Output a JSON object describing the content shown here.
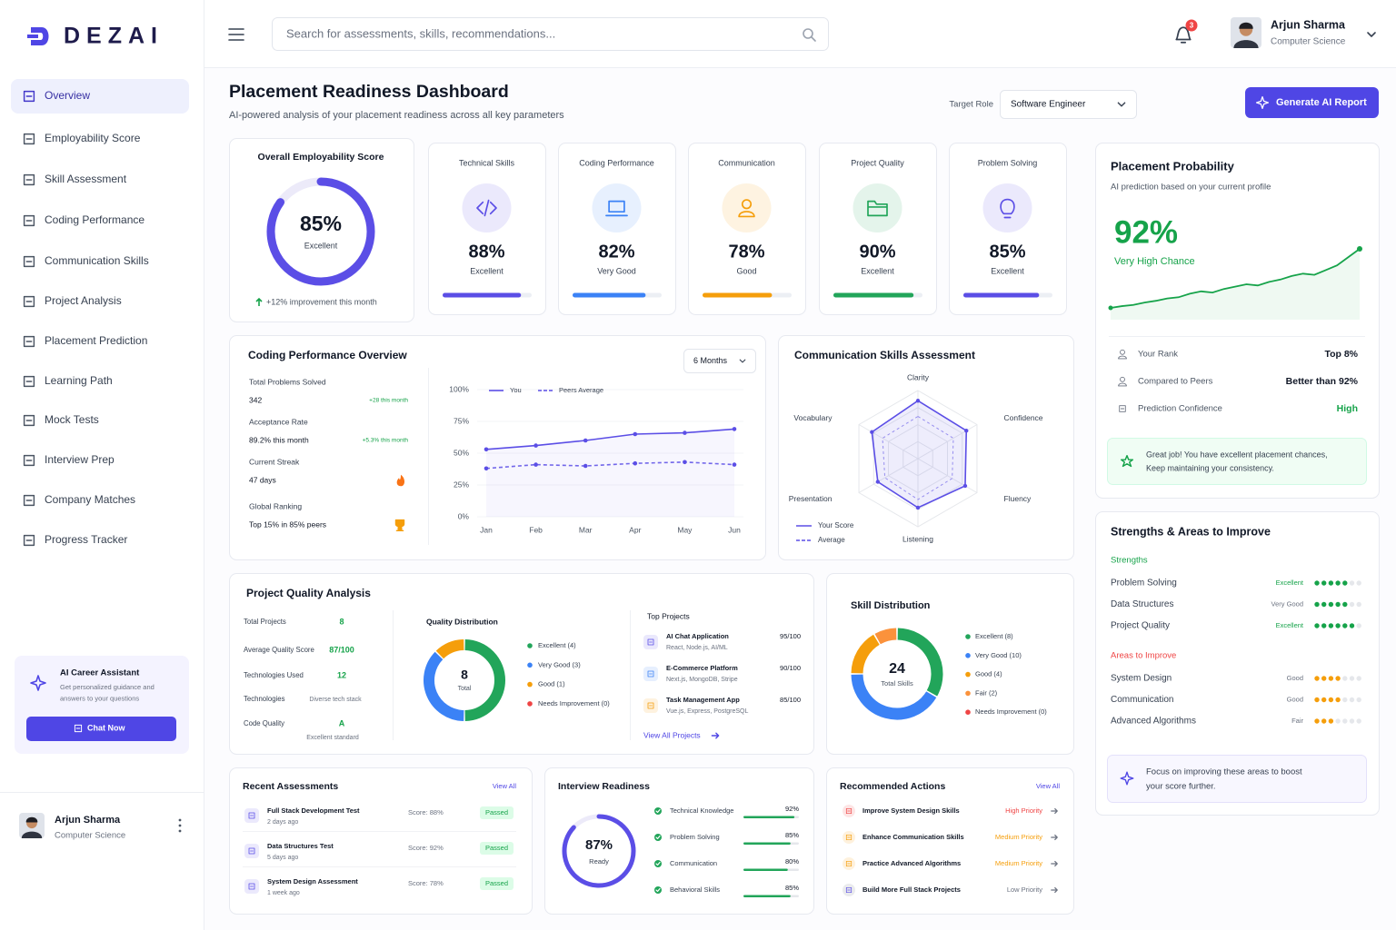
{
  "brand": "DEZAI",
  "nav": [
    {
      "label": "Overview",
      "active": true
    },
    {
      "label": "Employability Score"
    },
    {
      "label": "Skill Assessment"
    },
    {
      "label": "Coding Performance"
    },
    {
      "label": "Communication Skills"
    },
    {
      "label": "Project Analysis"
    },
    {
      "label": "Placement Prediction"
    },
    {
      "label": "Learning Path"
    },
    {
      "label": "Mock Tests"
    },
    {
      "label": "Interview Prep"
    },
    {
      "label": "Company Matches"
    },
    {
      "label": "Progress Tracker"
    }
  ],
  "assistant": {
    "title": "AI Career Assistant",
    "text": [
      "Get personalized guidance and",
      "answers to your questions"
    ],
    "button": "Chat Now"
  },
  "user": {
    "name": "Arjun Sharma",
    "dept": "Computer Science"
  },
  "search_placeholder": "Search for assessments, skills, recommendations...",
  "notifications": "3",
  "header": {
    "title": "Placement Readiness Dashboard",
    "subtitle": "AI-powered analysis of your placement readiness across all key parameters",
    "target_label": "Target Role",
    "target_value": "Software Engineer",
    "button": "Generate AI Report"
  },
  "overall": {
    "title": "Overall Employability Score",
    "score": {
      "value": 85,
      "label": "85%"
    },
    "rating": "Excellent",
    "note": "+12% improvement this month"
  },
  "skills": [
    {
      "name": "Technical Skills",
      "score": {
        "value": 88,
        "label": "88%"
      },
      "rating": "Excellent",
      "color": "#5b4ee6",
      "icon": "code"
    },
    {
      "name": "Coding Performance",
      "score": {
        "value": 82,
        "label": "82%"
      },
      "rating": "Very Good",
      "color": "#3b82f6",
      "icon": "laptop"
    },
    {
      "name": "Communication",
      "score": {
        "value": 78,
        "label": "78%"
      },
      "rating": "Good",
      "color": "#f59e0b",
      "icon": "person"
    },
    {
      "name": "Project Quality",
      "score": {
        "value": 90,
        "label": "90%"
      },
      "rating": "Excellent",
      "color": "#22a55a",
      "icon": "folder"
    },
    {
      "name": "Problem Solving",
      "score": {
        "value": 85,
        "label": "85%"
      },
      "rating": "Excellent",
      "color": "#5b4ee6",
      "icon": "bulb"
    }
  ],
  "probability": {
    "title": "Placement Probability",
    "subtitle": "AI prediction based on your current profile",
    "score": "92%",
    "rating": "Very High Chance",
    "color": "#16a34a",
    "trend": [
      0,
      3,
      5,
      9,
      12,
      16,
      18,
      24,
      28,
      26,
      32,
      36,
      40,
      38,
      44,
      48,
      54,
      58,
      56,
      64,
      72,
      86,
      100
    ],
    "stats": [
      {
        "label": "Your Rank",
        "value": "Top 8%"
      },
      {
        "label": "Compared to Peers",
        "value": "Better than 92%"
      },
      {
        "label": "Prediction Confidence",
        "value": "High",
        "color": "#16a34a"
      }
    ],
    "message": [
      "Great job! You have excellent placement chances,",
      "Keep maintaining your consistency."
    ]
  },
  "coding": {
    "title": "Coding Performance Overview",
    "period": "6 Months",
    "stats": [
      {
        "label": "Total Problems Solved",
        "value": "342",
        "change": "+28 this month"
      },
      {
        "label": "Acceptance Rate",
        "value": "89.2% this month",
        "change": "+5.3% this month"
      },
      {
        "label": "Current Streak",
        "value": "47 days"
      },
      {
        "label": "Global Ranking",
        "value": "Top 15% in 85% peers"
      }
    ],
    "chart": {
      "type": "line",
      "categories": [
        "Jan",
        "Feb",
        "Mar",
        "Apr",
        "May",
        "Jun"
      ],
      "ylim": [
        0,
        100
      ],
      "yticks": [
        {
          "value": 0,
          "label": "0%"
        },
        {
          "value": 25,
          "label": "25%"
        },
        {
          "value": 50,
          "label": "50%"
        },
        {
          "value": 75,
          "label": "75%"
        },
        {
          "value": 100,
          "label": "100%"
        }
      ],
      "grid": true,
      "series": [
        {
          "name": "You",
          "color": "#5b4ee6",
          "values": [
            53,
            56,
            60,
            65,
            66,
            69
          ]
        },
        {
          "name": "Peers Average",
          "color": "#5b4ee6",
          "dashed": true,
          "values": [
            38,
            41,
            40,
            42,
            43,
            41
          ]
        }
      ]
    }
  },
  "communication": {
    "title": "Communication Skills Assessment",
    "chart": {
      "type": "radar",
      "axes": [
        "Clarity",
        "Confidence",
        "Fluency",
        "Listening",
        "Presentation",
        "Vocabulary"
      ],
      "rlim": [
        0,
        100
      ],
      "series": [
        {
          "name": "Your Score",
          "color": "#5b4ee6",
          "values": [
            85,
            82,
            80,
            72,
            68,
            78
          ]
        },
        {
          "name": "Average",
          "color": "#5b4ee6",
          "dashed": true,
          "values": [
            62,
            60,
            58,
            60,
            56,
            60
          ]
        }
      ]
    }
  },
  "project_quality": {
    "title": "Project Quality Analysis",
    "stats": [
      {
        "label": "Total Projects",
        "value": "8"
      },
      {
        "label": "Average Quality Score",
        "value": "87/100"
      },
      {
        "label": "Technologies Used",
        "value": "12"
      },
      {
        "label": "Technologies",
        "value": "Diverse tech stack"
      },
      {
        "label": "Code Quality",
        "value": "A",
        "note": "Excellent standard"
      }
    ],
    "distribution": {
      "type": "donut",
      "title": "Quality Distribution",
      "total": "8",
      "total_label": "Total",
      "segments": [
        {
          "name": "Excellent (4)",
          "value": 4,
          "color": "#22a55a"
        },
        {
          "name": "Very Good (3)",
          "value": 3,
          "color": "#3b82f6"
        },
        {
          "name": "Good (1)",
          "value": 1,
          "color": "#f59e0b"
        },
        {
          "name": "Needs Improvement (0)",
          "value": 0,
          "color": "#ef4444"
        }
      ]
    },
    "top_projects": {
      "title": "Top Projects",
      "items": [
        {
          "name": "AI Chat Application",
          "tech": "React, Node.js, AI/ML",
          "score": "95/100"
        },
        {
          "name": "E-Commerce Platform",
          "tech": "Next.js, MongoDB, Stripe",
          "score": "90/100"
        },
        {
          "name": "Task Management App",
          "tech": "Vue.js, Express, PostgreSQL",
          "score": "85/100"
        }
      ],
      "link": "View All Projects"
    }
  },
  "skill_distribution": {
    "type": "donut",
    "title": "Skill Distribution",
    "total": "24",
    "total_label": "Total Skills",
    "segments": [
      {
        "name": "Excellent (8)",
        "value": 8,
        "color": "#22a55a"
      },
      {
        "name": "Very Good (10)",
        "value": 10,
        "color": "#3b82f6"
      },
      {
        "name": "Good (4)",
        "value": 4,
        "color": "#f59e0b"
      },
      {
        "name": "Fair (2)",
        "value": 2,
        "color": "#fb923c"
      },
      {
        "name": "Needs Improvement (0)",
        "value": 0,
        "color": "#ef4444"
      }
    ]
  },
  "strengths": {
    "title": "Strengths & Areas to Improve",
    "dot_scale": 7,
    "groups": [
      {
        "label": "Strengths",
        "color": "#16a34a",
        "items": [
          {
            "name": "Problem Solving",
            "rating": "Excellent",
            "dots": 5
          },
          {
            "name": "Data Structures",
            "rating": "Very Good",
            "dots": 5
          },
          {
            "name": "Project Quality",
            "rating": "Excellent",
            "dots": 6
          }
        ]
      },
      {
        "label": "Areas to Improve",
        "color": "#ef4444",
        "dot_color": "#f59e0b",
        "items": [
          {
            "name": "System Design",
            "rating": "Good",
            "dots": 4
          },
          {
            "name": "Communication",
            "rating": "Good",
            "dots": 4
          },
          {
            "name": "Advanced Algorithms",
            "rating": "Fair",
            "dots": 3
          }
        ]
      }
    ],
    "tip": [
      "Focus on improving these areas to boost",
      "your score further."
    ]
  },
  "recent": {
    "title": "Recent Assessments",
    "link": "View All",
    "items": [
      {
        "name": "Full Stack Development Test",
        "time": "2 days ago",
        "score": "Score: 88%",
        "status": "Passed"
      },
      {
        "name": "Data Structures Test",
        "time": "5 days ago",
        "score": "Score: 92%",
        "status": "Passed"
      },
      {
        "name": "System Design Assessment",
        "time": "1 week ago",
        "score": "Score: 78%",
        "status": "Passed"
      }
    ]
  },
  "interview": {
    "title": "Interview Readiness",
    "score": {
      "value": 87,
      "label": "87%"
    },
    "rating": "Ready",
    "items": [
      {
        "name": "Technical Knowledge",
        "score": {
          "value": 92,
          "label": "92%"
        }
      },
      {
        "name": "Problem Solving",
        "score": {
          "value": 85,
          "label": "85%"
        }
      },
      {
        "name": "Communication",
        "score": {
          "value": 80,
          "label": "80%"
        }
      },
      {
        "name": "Behavioral Skills",
        "score": {
          "value": 85,
          "label": "85%"
        }
      }
    ]
  },
  "actions": {
    "title": "Recommended Actions",
    "link": "View All",
    "items": [
      {
        "name": "Improve System Design Skills",
        "priority": "High Priority",
        "color": "#ef4444"
      },
      {
        "name": "Enhance Communication Skills",
        "priority": "Medium Priority",
        "color": "#f59e0b"
      },
      {
        "name": "Practice Advanced Algorithms",
        "priority": "Medium Priority",
        "color": "#f59e0b"
      },
      {
        "name": "Build More Full Stack Projects",
        "priority": "Low Priority",
        "color": "#6b7280"
      }
    ]
  }
}
